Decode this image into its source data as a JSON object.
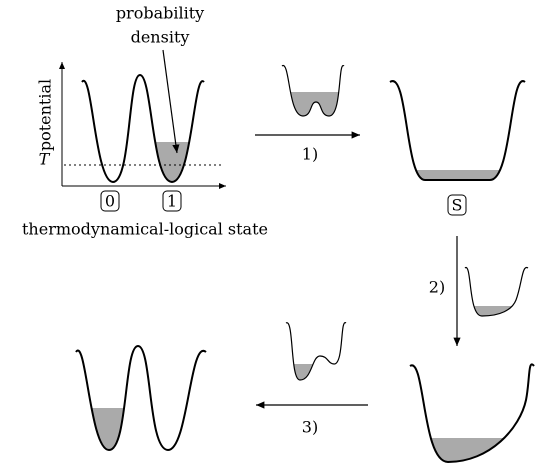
{
  "labels": {
    "annotation": [
      "probability",
      "density"
    ],
    "y_axis": "potential",
    "temperature": "T",
    "states": [
      "0",
      "1"
    ],
    "x_axis": "thermodynamical-logical state",
    "merged_state": "S",
    "steps": [
      "1)",
      "2)",
      "3)"
    ]
  }
}
